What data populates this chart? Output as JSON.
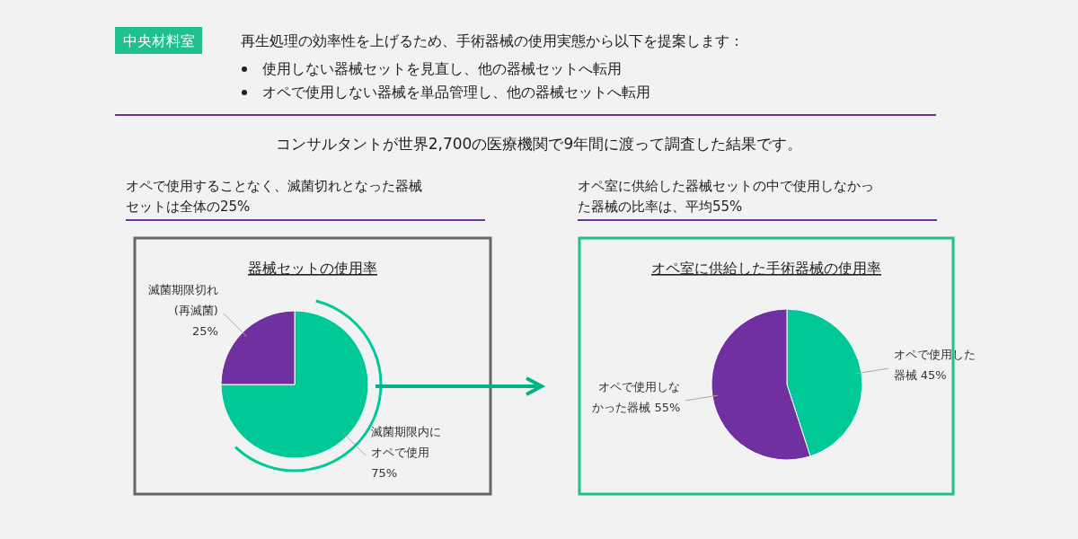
{
  "chart_data": [
    {
      "type": "other",
      "annotations": [
        "中央材料室",
        "再生処理の効率性を上げるため、手術器械の使用実態から以下を提案します：",
        "使用しない器械セットを見直し、他の器械セットへ転用",
        "オペで使用しない器械を単品管理し、他の器械セットへ転用",
        "コンサルタントが世界2,700の医療機関で9年間に渡って調査した結果です。"
      ]
    },
    {
      "type": "pie",
      "title": "器械セットの使用率",
      "annotations": [
        "オペで使用することなく、滅菌切れとなった器械セットは全体の25%"
      ],
      "categories": [
        "滅菌期限内にオペで使用",
        "滅菌期限切れ(再滅菌)"
      ],
      "values": [
        75,
        25
      ],
      "value_labels": [
        "75%",
        "25%"
      ],
      "colors": [
        "#00c896",
        "#7030a0"
      ]
    },
    {
      "type": "pie",
      "title": "オペ室に供給した手術器械の使用率",
      "annotations": [
        "オペ室に供給した器械セットの中で使用しなかった器械の比率は、平均55%"
      ],
      "categories": [
        "オペで使用した器械",
        "オペで使用しなかった器械"
      ],
      "values": [
        45,
        55
      ],
      "value_labels": [
        "45%",
        "55%"
      ],
      "colors": [
        "#00c896",
        "#7030a0"
      ]
    }
  ]
}
